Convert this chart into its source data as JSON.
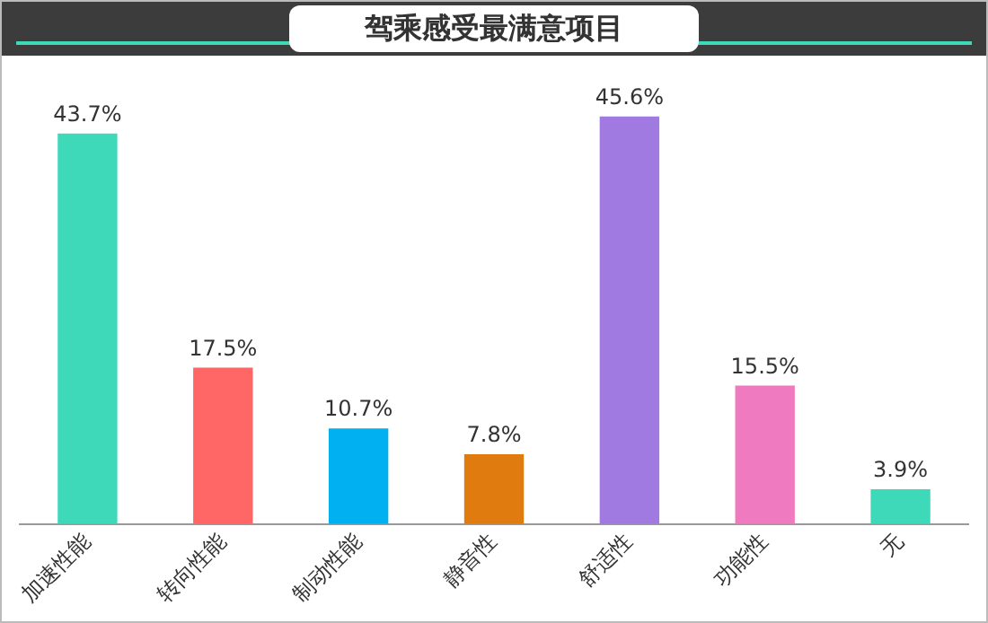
{
  "chart_data": {
    "type": "bar",
    "title": "驾乘感受最满意项目",
    "categories": [
      "加速性能",
      "转向性能",
      "制动性能",
      "静音性",
      "舒适性",
      "功能性",
      "无"
    ],
    "values": [
      43.7,
      17.5,
      10.7,
      7.8,
      45.6,
      15.5,
      3.9
    ],
    "value_labels": [
      "43.7%",
      "17.5%",
      "10.7%",
      "7.8%",
      "45.6%",
      "15.5%",
      "3.9%"
    ],
    "colors": [
      "#3dd9b8",
      "#ff6666",
      "#00b0f0",
      "#e07b10",
      "#a07ae0",
      "#f07ac0",
      "#3dd9b8"
    ],
    "grid": false,
    "legend": false
  }
}
